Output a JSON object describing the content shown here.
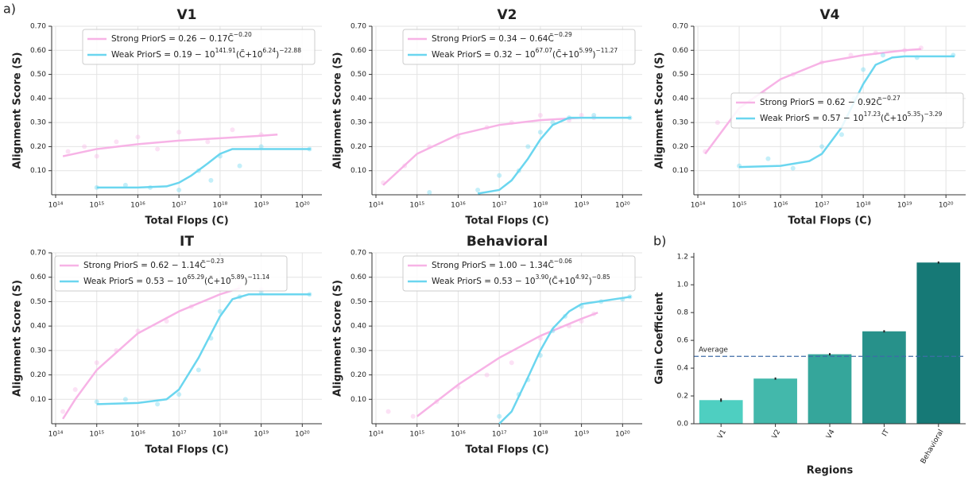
{
  "panel_labels": [
    "a)",
    "b)"
  ],
  "chart_data": [
    {
      "type": "line",
      "title": "V1",
      "xlabel": "Total Flops (C)",
      "ylabel": "Alignment Score (S)",
      "log_x": true,
      "grid": true,
      "legend": "upper center",
      "xlim": [
        80000000000000.0,
        3e+20
      ],
      "ylim": [
        0,
        0.7
      ],
      "xticks": [
        {
          "value": 100000000000000.0,
          "label": "10¹⁴"
        },
        {
          "value": 1000000000000000.0,
          "label": "10¹⁵"
        },
        {
          "value": 1e+16,
          "label": "10¹⁶"
        },
        {
          "value": 1e+17,
          "label": "10¹⁷"
        },
        {
          "value": 1e+18,
          "label": "10¹⁸"
        },
        {
          "value": 1e+19,
          "label": "10¹⁹"
        },
        {
          "value": 1e+20,
          "label": "10²⁰"
        }
      ],
      "yticks": [
        {
          "value": 0.1,
          "label": "0.10"
        },
        {
          "value": 0.2,
          "label": "0.20"
        },
        {
          "value": 0.3,
          "label": "0.30"
        },
        {
          "value": 0.4,
          "label": "0.40"
        },
        {
          "value": 0.5,
          "label": "0.50"
        },
        {
          "value": 0.6,
          "label": "0.60"
        },
        {
          "value": 0.7,
          "label": "0.70"
        }
      ],
      "series": [
        {
          "name": "Strong Prior",
          "color": "#f7b3e6",
          "formula": [
            "S = 0.26 − 0.17C̃",
            "−0.20"
          ],
          "x": [
            150000000000000.0,
            1000000000000000.0,
            1e+16,
            1e+17,
            1e+18,
            1e+19,
            2.5e+19
          ],
          "values": [
            0.16,
            0.19,
            0.21,
            0.225,
            0.235,
            0.245,
            0.25
          ],
          "scatter_x": [
            200000000000000.0,
            500000000000000.0,
            1000000000000000.0,
            3000000000000000.0,
            1e+16,
            3e+16,
            1e+17,
            5e+17,
            2e+18,
            1e+19
          ],
          "scatter_y": [
            0.18,
            0.2,
            0.16,
            0.22,
            0.24,
            0.19,
            0.26,
            0.22,
            0.27,
            0.25
          ]
        },
        {
          "name": "Weak Prior",
          "color": "#6bd6ef",
          "formula": [
            "S = 0.19 − 10",
            "141.91",
            "(C̃+10",
            "6.24",
            ")",
            "−22.88"
          ],
          "x": [
            1000000000000000.0,
            1e+16,
            5e+16,
            1e+17,
            2e+17,
            5e+17,
            1e+18,
            2e+18,
            5e+18,
            1.6e+20
          ],
          "values": [
            0.03,
            0.03,
            0.035,
            0.05,
            0.08,
            0.13,
            0.17,
            0.19,
            0.19,
            0.19
          ],
          "scatter_x": [
            1000000000000000.0,
            5000000000000000.0,
            2e+16,
            1e+17,
            3e+17,
            6e+17,
            1e+18,
            3e+18,
            1e+19,
            1.5e+20
          ],
          "scatter_y": [
            0.03,
            0.04,
            0.03,
            0.02,
            0.1,
            0.06,
            0.16,
            0.12,
            0.2,
            0.19
          ]
        }
      ]
    },
    {
      "type": "line",
      "title": "V2",
      "xlabel": "Total Flops (C)",
      "ylabel": "Alignment Score (S)",
      "log_x": true,
      "grid": true,
      "legend": "upper center",
      "xlim": [
        80000000000000.0,
        3e+20
      ],
      "ylim": [
        0,
        0.7
      ],
      "xticks": [
        {
          "value": 100000000000000.0,
          "label": "10¹⁴"
        },
        {
          "value": 1000000000000000.0,
          "label": "10¹⁵"
        },
        {
          "value": 1e+16,
          "label": "10¹⁶"
        },
        {
          "value": 1e+17,
          "label": "10¹⁷"
        },
        {
          "value": 1e+18,
          "label": "10¹⁸"
        },
        {
          "value": 1e+19,
          "label": "10¹⁹"
        },
        {
          "value": 1e+20,
          "label": "10²⁰"
        }
      ],
      "yticks": [
        {
          "value": 0.1,
          "label": "0.10"
        },
        {
          "value": 0.2,
          "label": "0.20"
        },
        {
          "value": 0.3,
          "label": "0.30"
        },
        {
          "value": 0.4,
          "label": "0.40"
        },
        {
          "value": 0.5,
          "label": "0.50"
        },
        {
          "value": 0.6,
          "label": "0.60"
        },
        {
          "value": 0.7,
          "label": "0.70"
        }
      ],
      "series": [
        {
          "name": "Strong Prior",
          "color": "#f7b3e6",
          "formula": [
            "S = 0.34 − 0.64C̃",
            "−0.29"
          ],
          "x": [
            150000000000000.0,
            1000000000000000.0,
            1e+16,
            1e+17,
            1e+18,
            1e+19
          ],
          "values": [
            0.04,
            0.17,
            0.25,
            0.29,
            0.31,
            0.32
          ],
          "scatter_x": [
            150000000000000.0,
            500000000000000.0,
            2000000000000000.0,
            1e+16,
            5e+16,
            2e+17,
            1e+18,
            5e+18,
            1e+19,
            2e+19
          ],
          "scatter_y": [
            0.05,
            0.12,
            0.2,
            0.24,
            0.28,
            0.3,
            0.33,
            0.31,
            0.33,
            0.32
          ]
        },
        {
          "name": "Weak Prior",
          "color": "#6bd6ef",
          "formula": [
            "S = 0.32 − 10",
            "67.07",
            "(C̃+10",
            "5.99",
            ")",
            "−11.27"
          ],
          "x": [
            3e+16,
            1e+17,
            2e+17,
            5e+17,
            1e+18,
            2e+18,
            5e+18,
            1e+19,
            1.6e+20
          ],
          "values": [
            0.005,
            0.02,
            0.06,
            0.15,
            0.23,
            0.29,
            0.32,
            0.32,
            0.32
          ],
          "scatter_x": [
            2000000000000000.0,
            3e+16,
            1e+17,
            3e+17,
            5e+17,
            1e+18,
            2e+18,
            5e+18,
            2e+19,
            1.5e+20
          ],
          "scatter_y": [
            0.01,
            0.02,
            0.08,
            0.1,
            0.2,
            0.26,
            0.3,
            0.32,
            0.33,
            0.32
          ]
        }
      ]
    },
    {
      "type": "line",
      "title": "V4",
      "xlabel": "Total Flops (C)",
      "ylabel": "Alignment Score (S)",
      "log_x": true,
      "grid": true,
      "legend": "center right",
      "xlim": [
        80000000000000.0,
        3e+20
      ],
      "ylim": [
        0,
        0.7
      ],
      "xticks": [
        {
          "value": 100000000000000.0,
          "label": "10¹⁴"
        },
        {
          "value": 1000000000000000.0,
          "label": "10¹⁵"
        },
        {
          "value": 1e+16,
          "label": "10¹⁶"
        },
        {
          "value": 1e+17,
          "label": "10¹⁷"
        },
        {
          "value": 1e+18,
          "label": "10¹⁸"
        },
        {
          "value": 1e+19,
          "label": "10¹⁹"
        },
        {
          "value": 1e+20,
          "label": "10²⁰"
        }
      ],
      "yticks": [
        {
          "value": 0.1,
          "label": "0.10"
        },
        {
          "value": 0.2,
          "label": "0.20"
        },
        {
          "value": 0.3,
          "label": "0.30"
        },
        {
          "value": 0.4,
          "label": "0.40"
        },
        {
          "value": 0.5,
          "label": "0.50"
        },
        {
          "value": 0.6,
          "label": "0.60"
        },
        {
          "value": 0.7,
          "label": "0.70"
        }
      ],
      "series": [
        {
          "name": "Strong Prior",
          "color": "#f7b3e6",
          "formula": [
            "S = 0.62 − 0.92C̃",
            "−0.27"
          ],
          "x": [
            150000000000000.0,
            1000000000000000.0,
            1e+16,
            1e+17,
            1e+18,
            1e+19,
            2.5e+19
          ],
          "values": [
            0.17,
            0.36,
            0.48,
            0.55,
            0.58,
            0.6,
            0.605
          ],
          "scatter_x": [
            150000000000000.0,
            300000000000000.0,
            1000000000000000.0,
            4000000000000000.0,
            2e+16,
            1e+17,
            5e+17,
            2e+18,
            1e+19,
            2.5e+19
          ],
          "scatter_y": [
            0.18,
            0.3,
            0.34,
            0.42,
            0.5,
            0.55,
            0.58,
            0.59,
            0.6,
            0.61
          ]
        },
        {
          "name": "Weak Prior",
          "color": "#6bd6ef",
          "formula": [
            "S = 0.57 − 10",
            "17.23",
            "(C̃+10",
            "5.35",
            ")",
            "−3.29"
          ],
          "x": [
            1000000000000000.0,
            1e+16,
            5e+16,
            1e+17,
            3e+17,
            1e+18,
            2e+18,
            5e+18,
            1e+19,
            1.6e+20
          ],
          "values": [
            0.115,
            0.12,
            0.14,
            0.17,
            0.28,
            0.46,
            0.54,
            0.57,
            0.575,
            0.575
          ],
          "scatter_x": [
            1000000000000000.0,
            5000000000000000.0,
            2e+16,
            1e+17,
            3e+17,
            6e+17,
            1e+18,
            3e+18,
            2e+19,
            1.5e+20
          ],
          "scatter_y": [
            0.12,
            0.15,
            0.11,
            0.2,
            0.25,
            0.4,
            0.52,
            0.58,
            0.57,
            0.58
          ]
        }
      ]
    },
    {
      "type": "line",
      "title": "IT",
      "xlabel": "Total Flops (C)",
      "ylabel": "Alignment Score (S)",
      "log_x": true,
      "grid": true,
      "legend": "upper left",
      "xlim": [
        80000000000000.0,
        3e+20
      ],
      "ylim": [
        0,
        0.7
      ],
      "xticks": [
        {
          "value": 100000000000000.0,
          "label": "10¹⁴"
        },
        {
          "value": 1000000000000000.0,
          "label": "10¹⁵"
        },
        {
          "value": 1e+16,
          "label": "10¹⁶"
        },
        {
          "value": 1e+17,
          "label": "10¹⁷"
        },
        {
          "value": 1e+18,
          "label": "10¹⁸"
        },
        {
          "value": 1e+19,
          "label": "10¹⁹"
        },
        {
          "value": 1e+20,
          "label": "10²⁰"
        }
      ],
      "yticks": [
        {
          "value": 0.1,
          "label": "0.10"
        },
        {
          "value": 0.2,
          "label": "0.20"
        },
        {
          "value": 0.3,
          "label": "0.30"
        },
        {
          "value": 0.4,
          "label": "0.40"
        },
        {
          "value": 0.5,
          "label": "0.50"
        },
        {
          "value": 0.6,
          "label": "0.60"
        },
        {
          "value": 0.7,
          "label": "0.70"
        }
      ],
      "series": [
        {
          "name": "Strong Prior",
          "color": "#f7b3e6",
          "formula": [
            "S = 0.62 − 1.14C̃",
            "−0.23"
          ],
          "x": [
            150000000000000.0,
            300000000000000.0,
            1000000000000000.0,
            1e+16,
            1e+17,
            1e+18,
            3e+18
          ],
          "values": [
            0.02,
            0.1,
            0.22,
            0.37,
            0.46,
            0.53,
            0.555
          ],
          "scatter_x": [
            150000000000000.0,
            300000000000000.0,
            1000000000000000.0,
            3000000000000000.0,
            1e+16,
            5e+16,
            2e+17,
            1e+18,
            3e+18,
            1e+19
          ],
          "scatter_y": [
            0.05,
            0.14,
            0.25,
            0.3,
            0.38,
            0.42,
            0.48,
            0.55,
            0.56,
            0.55
          ]
        },
        {
          "name": "Weak Prior",
          "color": "#6bd6ef",
          "formula": [
            "S = 0.53 − 10",
            "65.29",
            "(C̃+10",
            "5.89",
            ")",
            "−11.14"
          ],
          "x": [
            1000000000000000.0,
            1e+16,
            5e+16,
            1e+17,
            3e+17,
            1e+18,
            2e+18,
            5e+18,
            1.6e+20
          ],
          "values": [
            0.08,
            0.085,
            0.1,
            0.14,
            0.27,
            0.44,
            0.51,
            0.53,
            0.53
          ],
          "scatter_x": [
            1000000000000000.0,
            5000000000000000.0,
            3e+16,
            1e+17,
            3e+17,
            6e+17,
            1e+18,
            3e+18,
            1e+19,
            1.5e+20
          ],
          "scatter_y": [
            0.09,
            0.1,
            0.08,
            0.12,
            0.22,
            0.35,
            0.46,
            0.52,
            0.54,
            0.53
          ]
        }
      ]
    },
    {
      "type": "line",
      "title": "Behavioral",
      "xlabel": "Total Flops (C)",
      "ylabel": "Alignment Score (S)",
      "log_x": true,
      "grid": true,
      "legend": "upper center",
      "xlim": [
        80000000000000.0,
        3e+20
      ],
      "ylim": [
        0,
        0.7
      ],
      "xticks": [
        {
          "value": 100000000000000.0,
          "label": "10¹⁴"
        },
        {
          "value": 1000000000000000.0,
          "label": "10¹⁵"
        },
        {
          "value": 1e+16,
          "label": "10¹⁶"
        },
        {
          "value": 1e+17,
          "label": "10¹⁷"
        },
        {
          "value": 1e+18,
          "label": "10¹⁸"
        },
        {
          "value": 1e+19,
          "label": "10¹⁹"
        },
        {
          "value": 1e+20,
          "label": "10²⁰"
        }
      ],
      "yticks": [
        {
          "value": 0.1,
          "label": "0.10"
        },
        {
          "value": 0.2,
          "label": "0.20"
        },
        {
          "value": 0.3,
          "label": "0.30"
        },
        {
          "value": 0.4,
          "label": "0.40"
        },
        {
          "value": 0.5,
          "label": "0.50"
        },
        {
          "value": 0.6,
          "label": "0.60"
        },
        {
          "value": 0.7,
          "label": "0.70"
        }
      ],
      "series": [
        {
          "name": "Strong Prior",
          "color": "#f7b3e6",
          "formula": [
            "S = 1.00 − 1.34C̃",
            "−0.06"
          ],
          "x": [
            1000000000000000.0,
            1e+16,
            1e+17,
            1e+18,
            1e+19,
            2.5e+19
          ],
          "values": [
            0.03,
            0.16,
            0.27,
            0.36,
            0.43,
            0.455
          ],
          "scatter_x": [
            200000000000000.0,
            800000000000000.0,
            3000000000000000.0,
            1e+16,
            5e+16,
            2e+17,
            1e+18,
            5e+18,
            1e+19,
            2e+19
          ],
          "scatter_y": [
            0.05,
            0.03,
            0.09,
            0.15,
            0.2,
            0.25,
            0.35,
            0.4,
            0.42,
            0.45
          ]
        },
        {
          "name": "Weak Prior",
          "color": "#6bd6ef",
          "formula": [
            "S = 0.53 − 10",
            "3.90",
            "(C̃+10",
            "4.92",
            ")",
            "−0.85"
          ],
          "x": [
            1e+17,
            2e+17,
            5e+17,
            1e+18,
            2e+18,
            5e+18,
            1e+19,
            1e+20,
            1.6e+20
          ],
          "values": [
            0.0,
            0.05,
            0.19,
            0.3,
            0.39,
            0.46,
            0.49,
            0.515,
            0.52
          ],
          "scatter_x": [
            1e+17,
            3e+17,
            5e+17,
            1e+18,
            2e+18,
            4e+18,
            1e+19,
            3e+19,
            1e+20,
            1.5e+20
          ],
          "scatter_y": [
            0.03,
            0.12,
            0.18,
            0.28,
            0.38,
            0.44,
            0.48,
            0.5,
            0.51,
            0.52
          ]
        }
      ]
    },
    {
      "type": "bar",
      "xlabel": "Regions",
      "ylabel": "Gain Coefficient",
      "categories": [
        "V1",
        "V2",
        "V4",
        "IT",
        "Behavioral"
      ],
      "values": [
        0.17,
        0.325,
        0.5,
        0.665,
        1.16
      ],
      "errors": [
        0.012,
        0.008,
        0.008,
        0.008,
        0.008
      ],
      "colors": [
        "#4ecfc1",
        "#43b8ab",
        "#35a69b",
        "#27918a",
        "#167976"
      ],
      "ylim": [
        0,
        1.23
      ],
      "yticks": [
        {
          "value": 0,
          "label": "0.0"
        },
        0.2,
        0.4,
        0.6,
        0.8,
        {
          "value": 1,
          "label": "1.0"
        },
        1.2
      ],
      "average": {
        "value": 0.485,
        "label": "Average",
        "color": "#3e6ca8"
      }
    }
  ]
}
